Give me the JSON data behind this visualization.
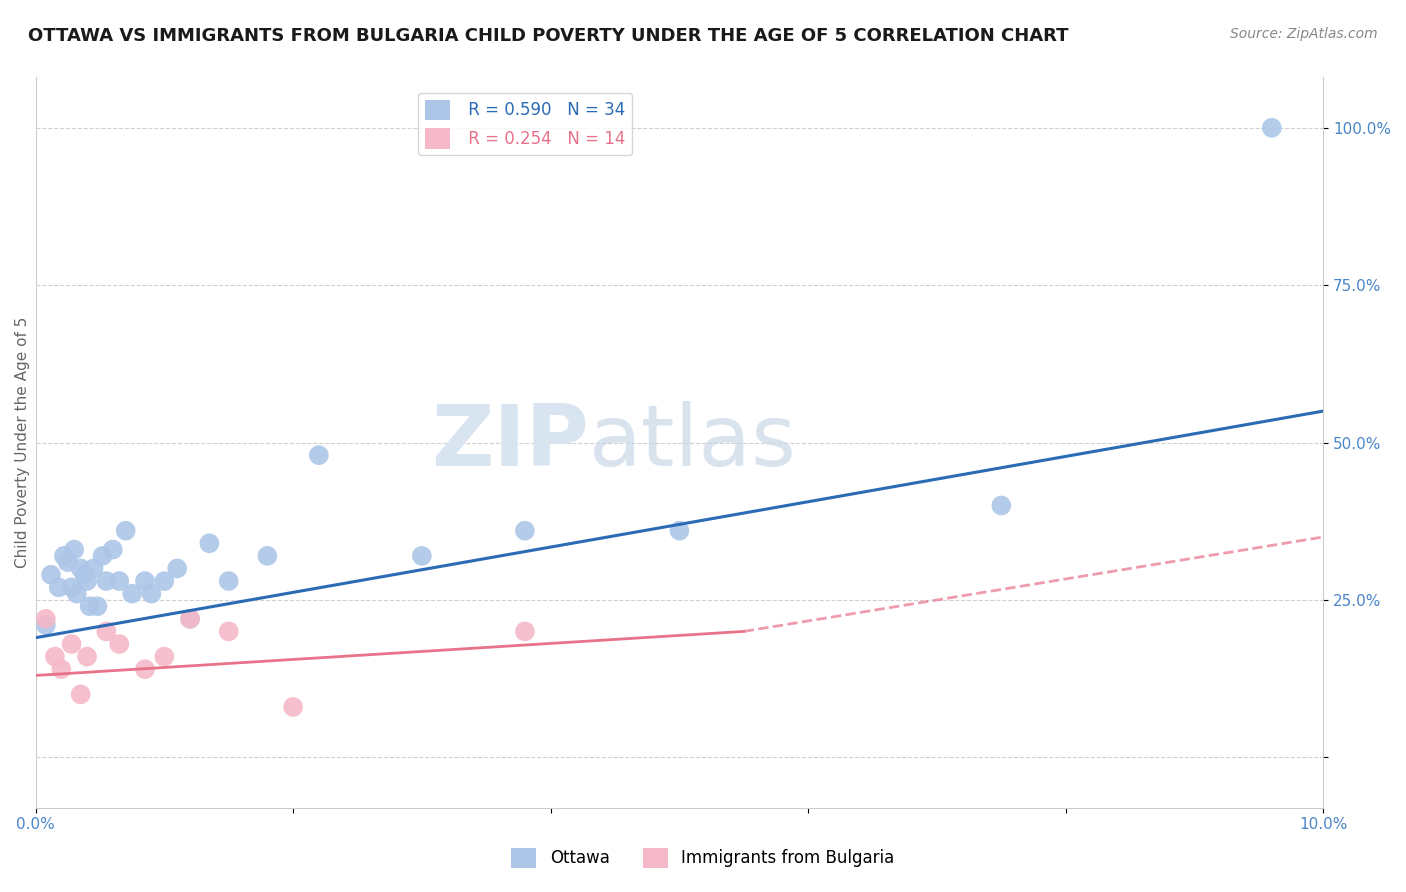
{
  "title": "OTTAWA VS IMMIGRANTS FROM BULGARIA CHILD POVERTY UNDER THE AGE OF 5 CORRELATION CHART",
  "source": "Source: ZipAtlas.com",
  "xlabel": "",
  "ylabel": "Child Poverty Under the Age of 5",
  "xlim": [
    0.0,
    10.0
  ],
  "ylim": [
    -8.0,
    108.0
  ],
  "ytick_positions": [
    0,
    25,
    50,
    75,
    100
  ],
  "ytick_labels": [
    "",
    "25.0%",
    "50.0%",
    "75.0%",
    "100.0%"
  ],
  "ottawa_R": 0.59,
  "ottawa_N": 34,
  "bulgaria_R": 0.254,
  "bulgaria_N": 14,
  "ottawa_color": "#adc6e8",
  "ottawa_line_color": "#2b6bb5",
  "bulgaria_color": "#f5b8c8",
  "bulgaria_line_color": "#e8728a",
  "ottawa_x": [
    0.08,
    0.12,
    0.18,
    0.22,
    0.25,
    0.28,
    0.3,
    0.32,
    0.35,
    0.38,
    0.4,
    0.42,
    0.45,
    0.48,
    0.52,
    0.55,
    0.6,
    0.65,
    0.7,
    0.75,
    0.85,
    0.9,
    1.0,
    1.1,
    1.2,
    1.35,
    1.5,
    1.8,
    2.2,
    3.0,
    3.8,
    5.0,
    7.5,
    9.6
  ],
  "ottawa_y": [
    21,
    29,
    27,
    32,
    31,
    27,
    33,
    26,
    30,
    29,
    28,
    24,
    30,
    24,
    32,
    28,
    33,
    28,
    36,
    26,
    28,
    26,
    28,
    30,
    22,
    34,
    28,
    32,
    48,
    32,
    36,
    36,
    40,
    100
  ],
  "bulgaria_x": [
    0.08,
    0.15,
    0.2,
    0.28,
    0.35,
    0.4,
    0.55,
    0.65,
    0.85,
    1.0,
    1.2,
    1.5,
    2.0,
    3.8
  ],
  "bulgaria_y": [
    22,
    16,
    14,
    18,
    10,
    16,
    20,
    18,
    14,
    16,
    22,
    20,
    8,
    20
  ],
  "blue_line_x0": 0.0,
  "blue_line_y0": 19.0,
  "blue_line_x1": 10.0,
  "blue_line_y1": 55.0,
  "pink_line_x0": 0.0,
  "pink_line_y0": 13.0,
  "pink_line_x1": 5.5,
  "pink_line_y1": 20.0,
  "pink_dash_x0": 5.5,
  "pink_dash_y0": 20.0,
  "pink_dash_x1": 10.0,
  "pink_dash_y1": 35.0,
  "background_color": "#ffffff",
  "grid_color": "#d0d0d0",
  "title_fontsize": 13,
  "axis_label_fontsize": 11,
  "tick_fontsize": 11,
  "legend_fontsize": 12
}
